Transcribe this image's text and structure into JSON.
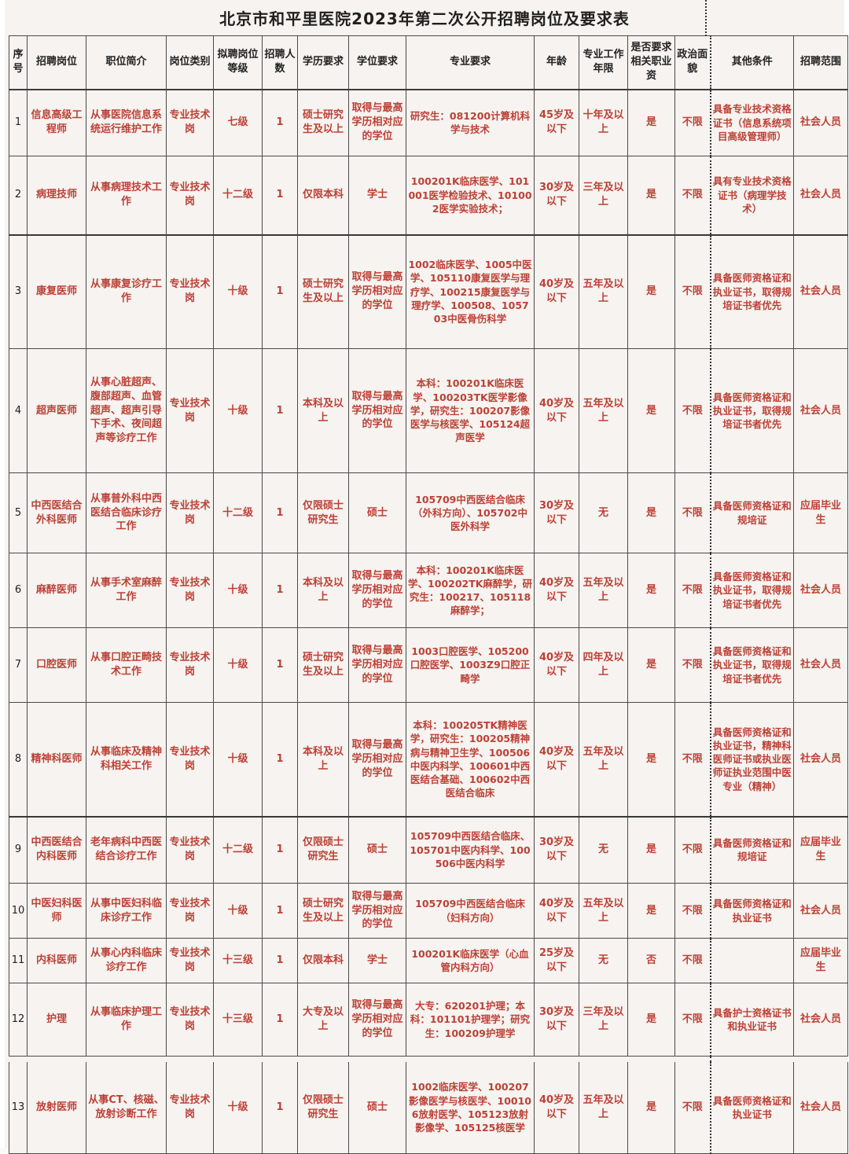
{
  "title": "北京市和平里医院2023年第二次公开招聘岗位及要求表",
  "colors": {
    "accent_red": "#bc4136",
    "border": "#4a4a4a",
    "background": "#f6f3f0",
    "header_text": "#222222"
  },
  "table": {
    "columns": [
      "序号",
      "招聘岗位",
      "职位简介",
      "岗位类别",
      "拟聘岗位等级",
      "招聘人数",
      "学历要求",
      "学位要求",
      "专业要求",
      "年龄",
      "专业工作年限",
      "是否要求相关职业资",
      "政治面貌",
      "其他条件",
      "招聘范围"
    ],
    "rows": [
      [
        "1",
        "信息高级工程师",
        "从事医院信息系统运行维护工作",
        "专业技术岗",
        "七级",
        "1",
        "硕士研究生及以上",
        "取得与最高学历相对应的学位",
        "研究生：081200计算机科学与技术",
        "45岁及以下",
        "十年及以上",
        "是",
        "不限",
        "具备专业技术资格证书（信息系统项目高级管理师）",
        "社会人员"
      ],
      [
        "2",
        "病理技师",
        "从事病理技术工作",
        "专业技术岗",
        "十二级",
        "1",
        "仅限本科",
        "学士",
        "100201K临床医学、101001医学检验技术、101002医学实验技术；",
        "30岁及以下",
        "三年及以上",
        "是",
        "不限",
        "具有专业技术资格证书（病理学技术）",
        "社会人员"
      ],
      [
        "3",
        "康复医师",
        "从事康复诊疗工作",
        "专业技术岗",
        "十级",
        "1",
        "硕士研究生及以上",
        "取得与最高学历相对应的学位",
        "1002临床医学、1005中医学、105110康复医学与理疗学、100215康复医学与理疗学、100508、105703中医骨伤科学",
        "40岁及以下",
        "五年及以上",
        "是",
        "不限",
        "具备医师资格证和执业证书，取得规培证书者优先",
        "社会人员"
      ],
      [
        "4",
        "超声医师",
        "从事心脏超声、腹部超声、血管超声、超声引导下手术、夜间超声等诊疗工作",
        "专业技术岗",
        "十级",
        "1",
        "本科及以上",
        "取得与最高学历相对应的学位",
        "本科：100201K临床医学、100203TK医学影像学，研究生：100207影像医学与核医学、105124超声医学",
        "40岁及以下",
        "五年及以上",
        "是",
        "不限",
        "具备医师资格证和执业证书，取得规培证书者优先",
        "社会人员"
      ],
      [
        "5",
        "中西医结合外科医师",
        "从事普外科中西医结合临床诊疗工作",
        "专业技术岗",
        "十二级",
        "1",
        "仅限硕士研究生",
        "硕士",
        "105709中西医结合临床（外科方向）、105702中医外科学",
        "30岁及以下",
        "无",
        "是",
        "不限",
        "具备医师资格证和规培证",
        "应届毕业生"
      ],
      [
        "6",
        "麻醉医师",
        "从事手术室麻醉工作",
        "专业技术岗",
        "十级",
        "1",
        "本科及以上",
        "取得与最高学历相对应的学位",
        "本科：100201K临床医学、100202TK麻醉学，研究生：100217、105118麻醉学；",
        "40岁及以下",
        "五年及以上",
        "是",
        "不限",
        "具备医师资格证和执业证书，取得规培证书者优先",
        "社会人员"
      ],
      [
        "7",
        "口腔医师",
        "从事口腔正畸技术工作",
        "专业技术岗",
        "十级",
        "1",
        "硕士研究生及以上",
        "取得与最高学历相对应的学位",
        "1003口腔医学、105200口腔医学、1003Z9口腔正畸学",
        "40岁及以下",
        "四年及以上",
        "是",
        "不限",
        "具备医师资格证和执业证书，取得规培证书者优先",
        "社会人员"
      ],
      [
        "8",
        "精神科医师",
        "从事临床及精神科相关工作",
        "专业技术岗",
        "十级",
        "1",
        "本科及以上",
        "取得与最高学历相对应的学位",
        "本科：100205TK精神医学，研究生：100205精神病与精神卫生学、100506中医内科学、100601中西医结合基础、100602中西医结合临床",
        "40岁及以下",
        "五年及以上",
        "是",
        "不限",
        "具备医师资格证和执业证书，精神科医师证书或执业医师证执业范围中医专业（精神）",
        "社会人员"
      ],
      [
        "9",
        "中西医结合内科医师",
        "老年病科中西医结合诊疗工作",
        "专业技术岗",
        "十二级",
        "1",
        "仅限硕士研究生",
        "硕士",
        "105709中西医结合临床、105701中医内科学、100506中医内科学",
        "30岁及以下",
        "无",
        "是",
        "不限",
        "具备医师资格证和规培证",
        "应届毕业生"
      ],
      [
        "10",
        "中医妇科医师",
        "从事中医妇科临床诊疗工作",
        "专业技术岗",
        "十级",
        "1",
        "硕士研究生及以上",
        "取得与最高学历相对应的学位",
        "105709中西医结合临床（妇科方向）",
        "40岁及以下",
        "五年及以上",
        "是",
        "不限",
        "具备医师资格证和执业证书",
        "社会人员"
      ],
      [
        "11",
        "内科医师",
        "从事心内科临床诊疗工作",
        "专业技术岗",
        "十三级",
        "1",
        "仅限本科",
        "学士",
        "100201K临床医学（心血管内科方向）",
        "25岁及以下",
        "无",
        "否",
        "不限",
        "",
        "应届毕业生"
      ],
      [
        "12",
        "护理",
        "从事临床护理工作",
        "专业技术岗",
        "十三级",
        "1",
        "大专及以上",
        "取得与最高学历相对应的学位",
        "大专：620201护理；本科：101101护理学；研究生：100209护理学",
        "30岁及以下",
        "三年及以上",
        "是",
        "不限",
        "具备护士资格证书和执业证书",
        "社会人员"
      ],
      [
        "13",
        "放射医师",
        "从事CT、核磁、放射诊断工作",
        "专业技术岗",
        "十级",
        "1",
        "仅限硕士研究生",
        "硕士",
        "1002临床医学、100207影像医学与核医学、100106放射医学、105123放射影像学、105125核医学",
        "40岁及以下",
        "五年及以上",
        "是",
        "不限",
        "具备医师资格证和执业证书",
        "社会人员"
      ]
    ]
  }
}
